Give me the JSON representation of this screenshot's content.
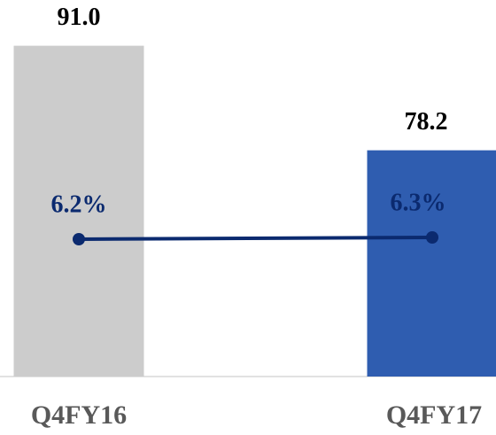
{
  "chart_data": {
    "type": "bar",
    "categories": [
      "Q4FY16",
      "Q4FY17"
    ],
    "series": [
      {
        "type": "bar",
        "colors": [
          "#cccccc",
          "#2f5db0"
        ],
        "values": [
          91.0,
          78.2
        ],
        "value_labels": [
          "91.0",
          "78.2"
        ]
      },
      {
        "type": "line",
        "axis": "y2",
        "color": "#0b2a6f",
        "values": [
          6.2,
          6.3
        ],
        "value_labels": [
          "6.2%",
          "6.3%"
        ]
      }
    ],
    "ylim": [
      50.5,
      96.6
    ],
    "y2lim": [
      -1.55,
      19.7
    ],
    "grid": false
  }
}
